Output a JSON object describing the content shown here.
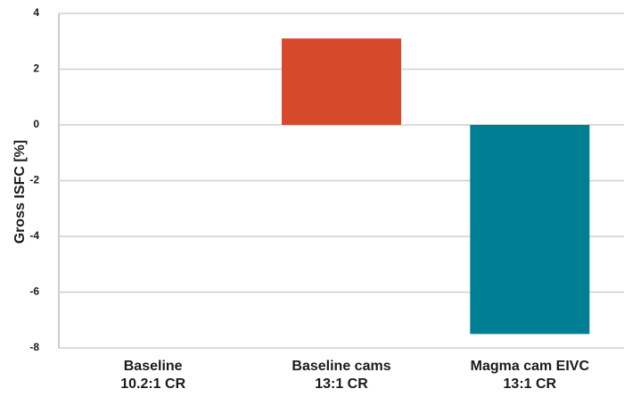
{
  "chart_data": {
    "type": "bar",
    "title": "",
    "xlabel": "",
    "ylabel": "Gross ISFC [%]",
    "categories": [
      [
        "Baseline",
        "10.2:1 CR"
      ],
      [
        "Baseline cams",
        "13:1 CR"
      ],
      [
        "Magma cam EIVC",
        "13:1 CR"
      ]
    ],
    "values": [
      0,
      3.1,
      -7.5
    ],
    "colors": [
      "#d64a2b",
      "#d64a2b",
      "#007f94"
    ],
    "ylim": [
      -8,
      4
    ],
    "yticks": [
      4,
      2,
      0,
      -2,
      -4,
      -6,
      -8
    ],
    "grid": true
  },
  "colors": {
    "grid": "#cfcfcf",
    "axis": "#bdbdbd",
    "text": "#1a1a1a"
  }
}
